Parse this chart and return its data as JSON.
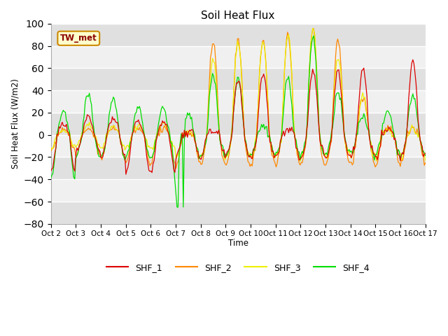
{
  "title": "Soil Heat Flux",
  "ylabel": "Soil Heat Flux (W/m2)",
  "xlabel": "Time",
  "ylim": [
    -80,
    100
  ],
  "yticks": [
    -80,
    -60,
    -40,
    -20,
    0,
    20,
    40,
    60,
    80,
    100
  ],
  "annotation": "TW_met",
  "annotation_color": "#8b0000",
  "annotation_box_facecolor": "#ffffcc",
  "annotation_box_edgecolor": "#cc8800",
  "colors": {
    "SHF_1": "#dd0000",
    "SHF_2": "#ff8800",
    "SHF_3": "#eeee00",
    "SHF_4": "#00dd00"
  },
  "background_color": "#ffffff",
  "plot_bg_color": "#ffffff",
  "band_color_dark": "#e0e0e0",
  "band_color_light": "#f0f0f0",
  "x_tick_labels": [
    "Oct 2",
    "Oct 3",
    "Oct 4",
    "Oct 5",
    "Oct 6",
    "Oct 7",
    "Oct 8",
    "Oct 9",
    "Oct 10",
    "Oct 11",
    "Oct 12",
    "Oct 13",
    "Oct 14",
    "Oct 15",
    "Oct 16",
    "Oct 17"
  ],
  "legend_entries": [
    "SHF_1",
    "SHF_2",
    "SHF_3",
    "SHF_4"
  ]
}
